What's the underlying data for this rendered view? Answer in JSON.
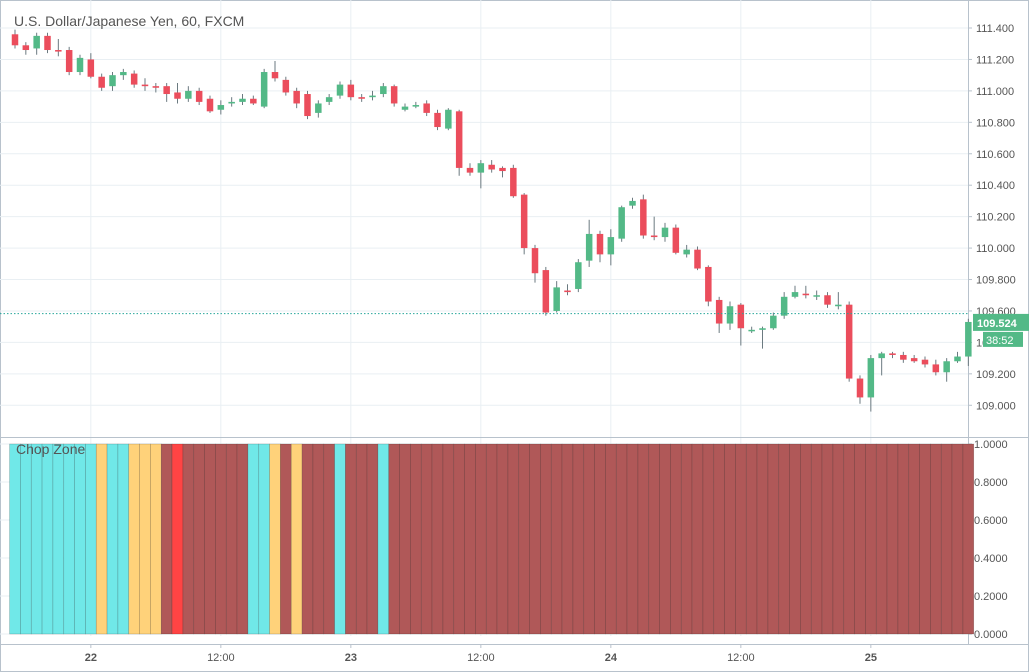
{
  "chart_title": "U.S. Dollar/Japanese Yen, 60, FXCM",
  "indicator_title": "Chop Zone",
  "colors": {
    "up": "#53b987",
    "down": "#eb4d5c",
    "grid": "#e9eff3",
    "axis_text": "#555555",
    "price_line": "#26a69a",
    "badge_bg": "#53b987",
    "chop": {
      "cyan": "#70e8e8",
      "orange": "#ffd27a",
      "red": "#ff4444",
      "darkred": "#b05858"
    }
  },
  "chart_data": [
    {
      "type": "candlestick",
      "ylim": [
        108.83,
        111.54
      ],
      "y_ticks": [
        "111.400",
        "111.200",
        "111.000",
        "110.800",
        "110.600",
        "110.400",
        "110.200",
        "110.000",
        "109.800",
        "109.600",
        "109.400",
        "109.200",
        "109.000"
      ],
      "x_labels": [
        "22",
        "12:00",
        "23",
        "12:00",
        "24",
        "12:00",
        "25"
      ],
      "x_label_index": [
        7,
        19,
        31,
        43,
        55,
        67,
        79
      ],
      "last_price": "109.524",
      "countdown": "38:52",
      "last_value": 109.583,
      "candles": [
        [
          111.36,
          111.29,
          111.39,
          111.27
        ],
        [
          111.29,
          111.26,
          111.31,
          111.23
        ],
        [
          111.27,
          111.35,
          111.37,
          111.23
        ],
        [
          111.35,
          111.26,
          111.37,
          111.24
        ],
        [
          111.26,
          111.25,
          111.33,
          111.22
        ],
        [
          111.26,
          111.12,
          111.28,
          111.1
        ],
        [
          111.12,
          111.21,
          111.23,
          111.1
        ],
        [
          111.2,
          111.09,
          111.24,
          111.08
        ],
        [
          111.09,
          111.02,
          111.11,
          111.0
        ],
        [
          111.03,
          111.1,
          111.12,
          111.0
        ],
        [
          111.1,
          111.12,
          111.14,
          111.07
        ],
        [
          111.11,
          111.04,
          111.13,
          111.02
        ],
        [
          111.04,
          111.03,
          111.08,
          111.0
        ],
        [
          111.03,
          111.02,
          111.05,
          110.99
        ],
        [
          111.03,
          110.98,
          111.05,
          110.93
        ],
        [
          110.99,
          110.95,
          111.05,
          110.92
        ],
        [
          110.95,
          111.0,
          111.03,
          110.93
        ],
        [
          111.0,
          110.93,
          111.02,
          110.91
        ],
        [
          110.95,
          110.87,
          110.97,
          110.86
        ],
        [
          110.88,
          110.91,
          110.94,
          110.85
        ],
        [
          110.92,
          110.93,
          110.96,
          110.9
        ],
        [
          110.93,
          110.95,
          110.98,
          110.91
        ],
        [
          110.95,
          110.92,
          110.97,
          110.91
        ],
        [
          110.9,
          111.12,
          111.14,
          110.89
        ],
        [
          111.12,
          111.08,
          111.19,
          111.06
        ],
        [
          111.07,
          110.99,
          111.09,
          110.97
        ],
        [
          111.0,
          110.92,
          111.02,
          110.89
        ],
        [
          110.98,
          110.84,
          111.0,
          110.82
        ],
        [
          110.86,
          110.92,
          110.94,
          110.83
        ],
        [
          110.93,
          110.96,
          110.98,
          110.91
        ],
        [
          110.97,
          111.04,
          111.06,
          110.95
        ],
        [
          111.04,
          110.96,
          111.07,
          110.94
        ],
        [
          110.96,
          110.95,
          110.98,
          110.93
        ],
        [
          110.96,
          110.97,
          111.0,
          110.94
        ],
        [
          110.98,
          111.03,
          111.05,
          110.96
        ],
        [
          111.03,
          110.92,
          111.04,
          110.9
        ],
        [
          110.88,
          110.9,
          110.92,
          110.87
        ],
        [
          110.9,
          110.91,
          110.93,
          110.89
        ],
        [
          110.92,
          110.86,
          110.94,
          110.84
        ],
        [
          110.86,
          110.77,
          110.88,
          110.75
        ],
        [
          110.76,
          110.88,
          110.89,
          110.75
        ],
        [
          110.87,
          110.51,
          110.88,
          110.46
        ],
        [
          110.51,
          110.48,
          110.54,
          110.46
        ],
        [
          110.48,
          110.54,
          110.56,
          110.38
        ],
        [
          110.53,
          110.5,
          110.56,
          110.48
        ],
        [
          110.51,
          110.49,
          110.52,
          110.45
        ],
        [
          110.51,
          110.33,
          110.53,
          110.32
        ],
        [
          110.34,
          110.0,
          110.35,
          109.96
        ],
        [
          110.0,
          109.84,
          110.02,
          109.78
        ],
        [
          109.86,
          109.59,
          109.88,
          109.57
        ],
        [
          109.6,
          109.75,
          109.79,
          109.59
        ],
        [
          109.73,
          109.72,
          109.77,
          109.7
        ],
        [
          109.74,
          109.91,
          109.93,
          109.72
        ],
        [
          109.92,
          110.09,
          110.18,
          109.88
        ],
        [
          110.09,
          109.96,
          110.11,
          109.91
        ],
        [
          109.96,
          110.07,
          110.12,
          109.89
        ],
        [
          110.06,
          110.26,
          110.27,
          110.04
        ],
        [
          110.27,
          110.3,
          110.32,
          110.25
        ],
        [
          110.31,
          110.08,
          110.34,
          110.06
        ],
        [
          110.08,
          110.07,
          110.2,
          110.05
        ],
        [
          110.07,
          110.13,
          110.16,
          110.04
        ],
        [
          110.13,
          109.97,
          110.15,
          109.96
        ],
        [
          109.96,
          109.99,
          110.02,
          109.94
        ],
        [
          109.99,
          109.87,
          110.01,
          109.86
        ],
        [
          109.88,
          109.66,
          109.89,
          109.63
        ],
        [
          109.67,
          109.52,
          109.69,
          109.46
        ],
        [
          109.52,
          109.63,
          109.66,
          109.48
        ],
        [
          109.64,
          109.49,
          109.65,
          109.38
        ],
        [
          109.48,
          109.48,
          109.5,
          109.46
        ],
        [
          109.48,
          109.49,
          109.5,
          109.36
        ],
        [
          109.49,
          109.57,
          109.59,
          109.48
        ],
        [
          109.57,
          109.69,
          109.72,
          109.55
        ],
        [
          109.69,
          109.72,
          109.76,
          109.68
        ],
        [
          109.71,
          109.7,
          109.76,
          109.68
        ],
        [
          109.7,
          109.7,
          109.73,
          109.67
        ],
        [
          109.7,
          109.64,
          109.72,
          109.62
        ],
        [
          109.63,
          109.64,
          109.72,
          109.61
        ],
        [
          109.64,
          109.17,
          109.66,
          109.15
        ],
        [
          109.17,
          109.05,
          109.19,
          109.01
        ],
        [
          109.05,
          109.3,
          109.32,
          108.96
        ],
        [
          109.3,
          109.33,
          109.34,
          109.19
        ],
        [
          109.33,
          109.32,
          109.34,
          109.3
        ],
        [
          109.32,
          109.29,
          109.34,
          109.27
        ],
        [
          109.3,
          109.28,
          109.32,
          109.27
        ],
        [
          109.29,
          109.26,
          109.31,
          109.24
        ],
        [
          109.26,
          109.21,
          109.29,
          109.19
        ],
        [
          109.21,
          109.28,
          109.3,
          109.15
        ],
        [
          109.28,
          109.31,
          109.34,
          109.27
        ],
        [
          109.31,
          109.53,
          109.55,
          109.25
        ]
      ]
    },
    {
      "type": "bar",
      "ylim": [
        0,
        1
      ],
      "y_ticks": [
        "1.0000",
        "0.8000",
        "0.6000",
        "0.4000",
        "0.2000",
        "0.0000"
      ],
      "values_all": 1,
      "segments": [
        {
          "color": "cyan",
          "count": 8
        },
        {
          "color": "orange",
          "count": 1
        },
        {
          "color": "cyan",
          "count": 2
        },
        {
          "color": "orange",
          "count": 3
        },
        {
          "color": "darkred",
          "count": 1
        },
        {
          "color": "red",
          "count": 1
        },
        {
          "color": "darkred",
          "count": 6
        },
        {
          "color": "cyan",
          "count": 2
        },
        {
          "color": "orange",
          "count": 1
        },
        {
          "color": "darkred",
          "count": 1
        },
        {
          "color": "orange",
          "count": 1
        },
        {
          "color": "darkred",
          "count": 3
        },
        {
          "color": "cyan",
          "count": 1
        },
        {
          "color": "darkred",
          "count": 3
        },
        {
          "color": "cyan",
          "count": 1
        },
        {
          "color": "darkred",
          "count": 54
        }
      ]
    }
  ]
}
